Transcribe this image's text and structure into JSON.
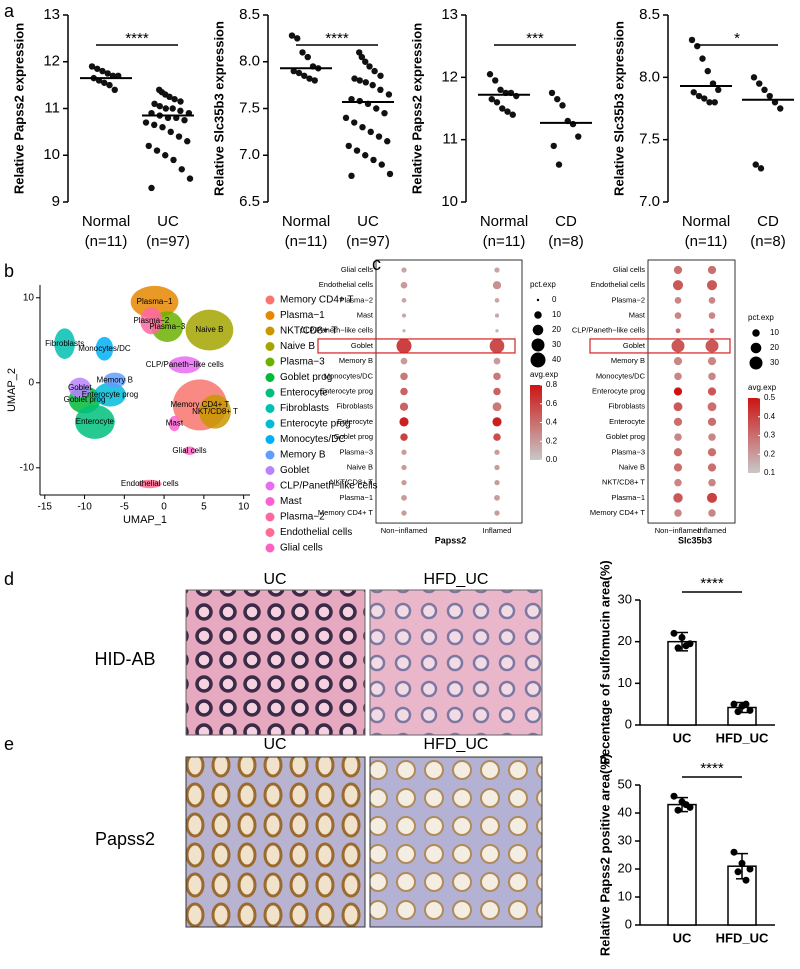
{
  "panels": {
    "a": {
      "letter": "a",
      "plots": [
        {
          "type": "dot_strip",
          "ylabel": "Relative Papss2 expression",
          "ylim": [
            9,
            13
          ],
          "yticks": [
            9,
            10,
            11,
            12,
            13
          ],
          "significance": "****",
          "groups": [
            {
              "name": "Normal",
              "n": "(n=11)",
              "center": 11.65,
              "values": [
                11.9,
                11.85,
                11.8,
                11.75,
                11.7,
                11.7,
                11.65,
                11.6,
                11.55,
                11.5,
                11.4
              ]
            },
            {
              "name": "UC",
              "n": "(n=97)",
              "center": 10.85,
              "values": [
                11.4,
                11.35,
                11.3,
                11.25,
                11.2,
                11.15,
                11.1,
                11.05,
                11.0,
                11.0,
                10.95,
                10.9,
                10.9,
                10.85,
                10.8,
                10.8,
                10.75,
                10.7,
                10.65,
                10.6,
                10.5,
                10.4,
                10.3,
                10.2,
                10.1,
                10.0,
                9.9,
                9.7,
                9.5,
                9.3
              ]
            }
          ]
        },
        {
          "type": "dot_strip",
          "ylabel": "Relative Slc35b3 expression",
          "ylim": [
            6.5,
            8.5
          ],
          "yticks": [
            6.5,
            {
              "value": 7,
              "label": "7.0"
            },
            7.5,
            {
              "value": 8,
              "label": "8.0"
            },
            8.5
          ],
          "significance": "****",
          "groups": [
            {
              "name": "Normal",
              "n": "(n=11)",
              "center": 7.93,
              "values": [
                8.28,
                8.25,
                8.1,
                8.05,
                7.95,
                7.93,
                7.9,
                7.88,
                7.85,
                7.82,
                7.8
              ]
            },
            {
              "name": "UC",
              "n": "(n=97)",
              "center": 7.57,
              "values": [
                8.1,
                8.05,
                8.0,
                7.95,
                7.9,
                7.85,
                7.82,
                7.8,
                7.78,
                7.75,
                7.7,
                7.65,
                7.6,
                7.58,
                7.55,
                7.5,
                7.45,
                7.4,
                7.35,
                7.3,
                7.25,
                7.2,
                7.15,
                7.1,
                7.05,
                7.0,
                6.95,
                6.9,
                6.8,
                6.78
              ]
            }
          ]
        },
        {
          "type": "dot_strip",
          "ylabel": "Relative Papss2 expression",
          "ylim": [
            10,
            13
          ],
          "yticks": [
            10,
            11,
            12,
            13
          ],
          "significance": "***",
          "groups": [
            {
              "name": "Normal",
              "n": "(n=11)",
              "center": 11.72,
              "values": [
                12.05,
                11.95,
                11.8,
                11.75,
                11.75,
                11.7,
                11.65,
                11.6,
                11.5,
                11.45,
                11.4
              ]
            },
            {
              "name": "CD",
              "n": "(n=8)",
              "center": 11.27,
              "values": [
                11.75,
                11.65,
                11.55,
                11.3,
                11.25,
                11.05,
                10.9,
                10.6
              ]
            }
          ]
        },
        {
          "type": "dot_strip",
          "ylabel": "Relative Slc35b3 expression",
          "ylim": [
            7,
            8.5
          ],
          "yticks": [
            {
              "value": 7,
              "label": "7.0"
            },
            7.5,
            {
              "value": 8,
              "label": "8.0"
            },
            8.5
          ],
          "significance": "*",
          "groups": [
            {
              "name": "Normal",
              "n": "(n=11)",
              "center": 7.93,
              "values": [
                8.3,
                8.25,
                8.15,
                8.05,
                7.95,
                7.9,
                7.88,
                7.85,
                7.83,
                7.8,
                7.8
              ]
            },
            {
              "name": "CD",
              "n": "(n=8)",
              "center": 7.82,
              "values": [
                8.0,
                7.95,
                7.9,
                7.85,
                7.8,
                7.75,
                7.3,
                7.27
              ]
            }
          ]
        }
      ]
    },
    "b": {
      "letter": "b",
      "type": "umap",
      "xlabel": "UMAP_1",
      "ylabel": "UMAP_2",
      "xlim": [
        -15.6,
        10.8
      ],
      "ylim": [
        -13.2,
        11.5
      ],
      "xticks": [
        -15,
        -10,
        -5,
        0,
        5,
        10
      ],
      "yticks": [
        -10,
        0,
        10
      ],
      "clusters": [
        {
          "name": "Memory CD4+ T",
          "color": "#f8766d",
          "x": 4.5,
          "y": -2.6,
          "rx": 3.4,
          "ry": 3
        },
        {
          "name": "Plasma−1",
          "color": "#e58700",
          "x": -1.2,
          "y": 9.5,
          "rx": 3,
          "ry": 1.9
        },
        {
          "name": "NKT/CD8+ T",
          "color": "#c99800",
          "x": 6.4,
          "y": -3.4,
          "rx": 2,
          "ry": 2
        },
        {
          "name": "Naive B",
          "color": "#a3a500",
          "x": 5.7,
          "y": 6.2,
          "rx": 3,
          "ry": 2.4
        },
        {
          "name": "Plasma−3",
          "color": "#6bb100",
          "x": 0.4,
          "y": 6.6,
          "rx": 2,
          "ry": 1.8
        },
        {
          "name": "Goblet prog",
          "color": "#00ba38",
          "x": -10,
          "y": -2,
          "rx": 2,
          "ry": 1.6
        },
        {
          "name": "Enterocyte",
          "color": "#00bf7d",
          "x": -8.7,
          "y": -4.6,
          "rx": 2.5,
          "ry": 2
        },
        {
          "name": "Fibroblasts",
          "color": "#00c0af",
          "x": -12.5,
          "y": 4.6,
          "rx": 1.3,
          "ry": 1.8
        },
        {
          "name": "Enterocyte prog",
          "color": "#00bcd8",
          "x": -6.8,
          "y": -1.4,
          "rx": 2,
          "ry": 1.4
        },
        {
          "name": "Monocytes/DC",
          "color": "#00b0f6",
          "x": -7.5,
          "y": 4,
          "rx": 1.1,
          "ry": 1.4
        },
        {
          "name": "Memory B",
          "color": "#619cff",
          "x": -6.2,
          "y": 0.3,
          "rx": 1.4,
          "ry": 0.9
        },
        {
          "name": "Goblet",
          "color": "#b983ff",
          "x": -10.6,
          "y": -0.6,
          "rx": 1.4,
          "ry": 1.2
        },
        {
          "name": "CLP/Paneth−like cells",
          "color": "#e76bf3",
          "x": 2.6,
          "y": 2.1,
          "rx": 2,
          "ry": 1
        },
        {
          "name": "Mast",
          "color": "#fd61d1",
          "x": 1.3,
          "y": -4.8,
          "rx": 0.7,
          "ry": 0.9
        },
        {
          "name": "Plasma−2",
          "color": "#ff67a4",
          "x": -1.6,
          "y": 7.3,
          "rx": 1.4,
          "ry": 1.6
        },
        {
          "name": "Endothelial cells",
          "color": "#ff6c90",
          "x": -1.8,
          "y": -11.9,
          "rx": 1.5,
          "ry": 0.5
        },
        {
          "name": "Glial cells",
          "color": "#ff61c3",
          "x": 3.2,
          "y": -8,
          "rx": 0.8,
          "ry": 0.5
        }
      ]
    },
    "c": {
      "letter": "c",
      "plots": [
        {
          "type": "dot_plot",
          "gene": "Papss2",
          "columns": [
            "Non−inflamed",
            "Inflamed"
          ],
          "highlight_row": 5,
          "rows": [
            "Glial cells",
            "Endothelial cells",
            "Plasma−2",
            "Mast",
            "CLP/Paneth−like cells",
            "Goblet",
            "Memory B",
            "Monocytes/DC",
            "Enterocyte prog",
            "Fibroblasts",
            "Enterocyte",
            "Goblet prog",
            "Plasma−3",
            "Naive B",
            "NKT/CD8+ T",
            "Plasma−1",
            "Memory CD4+ T"
          ],
          "pct": [
            [
              5,
              5
            ],
            [
              8,
              12
            ],
            [
              4,
              4
            ],
            [
              3,
              3
            ],
            [
              2,
              2
            ],
            [
              40,
              38
            ],
            [
              8,
              8
            ],
            [
              10,
              10
            ],
            [
              10,
              10
            ],
            [
              12,
              14
            ],
            [
              15,
              15
            ],
            [
              10,
              10
            ],
            [
              5,
              5
            ],
            [
              5,
              5
            ],
            [
              5,
              5
            ],
            [
              6,
              6
            ],
            [
              5,
              5
            ]
          ],
          "avg": [
            [
              0.15,
              0.15
            ],
            [
              0.2,
              0.25
            ],
            [
              0.15,
              0.15
            ],
            [
              0.15,
              0.15
            ],
            [
              0.1,
              0.1
            ],
            [
              0.6,
              0.55
            ],
            [
              0.2,
              0.2
            ],
            [
              0.35,
              0.35
            ],
            [
              0.45,
              0.45
            ],
            [
              0.45,
              0.35
            ],
            [
              0.75,
              0.75
            ],
            [
              0.6,
              0.55
            ],
            [
              0.2,
              0.2
            ],
            [
              0.2,
              0.2
            ],
            [
              0.2,
              0.2
            ],
            [
              0.2,
              0.2
            ],
            [
              0.2,
              0.2
            ]
          ],
          "size_legend": {
            "title": "pct.exp",
            "values": [
              0,
              10,
              20,
              30,
              40
            ]
          },
          "color_legend": {
            "title": "avg.exp",
            "lim": [
              0,
              0.8
            ],
            "ticks": [
              {
                "value": 0,
                "label": "0.0"
              },
              0.2,
              0.4,
              0.6,
              0.8
            ]
          }
        },
        {
          "type": "dot_plot",
          "gene": "Slc35b3",
          "columns": [
            "Non−inflamed",
            "Inflamed"
          ],
          "highlight_row": 5,
          "rows": [
            "Glial cells",
            "Endothelial cells",
            "Plasma−2",
            "Mast",
            "CLP/Paneth−like cells",
            "Goblet",
            "Memory B",
            "Monocytes/DC",
            "Enterocyte prog",
            "Fibroblasts",
            "Enterocyte",
            "Goblet prog",
            "Plasma−3",
            "Naive B",
            "NKT/CD8+ T",
            "Plasma−1",
            "Memory CD4+ T"
          ],
          "pct": [
            [
              12,
              12
            ],
            [
              18,
              18
            ],
            [
              8,
              8
            ],
            [
              8,
              8
            ],
            [
              4,
              4
            ],
            [
              30,
              30
            ],
            [
              12,
              12
            ],
            [
              10,
              10
            ],
            [
              12,
              12
            ],
            [
              14,
              14
            ],
            [
              12,
              12
            ],
            [
              10,
              10
            ],
            [
              12,
              12
            ],
            [
              12,
              12
            ],
            [
              10,
              10
            ],
            [
              16,
              18
            ],
            [
              10,
              10
            ]
          ],
          "avg": [
            [
              0.3,
              0.3
            ],
            [
              0.35,
              0.35
            ],
            [
              0.25,
              0.25
            ],
            [
              0.25,
              0.25
            ],
            [
              0.3,
              0.3
            ],
            [
              0.35,
              0.35
            ],
            [
              0.25,
              0.25
            ],
            [
              0.25,
              0.25
            ],
            [
              0.5,
              0.35
            ],
            [
              0.35,
              0.3
            ],
            [
              0.3,
              0.3
            ],
            [
              0.25,
              0.25
            ],
            [
              0.3,
              0.3
            ],
            [
              0.3,
              0.3
            ],
            [
              0.25,
              0.25
            ],
            [
              0.35,
              0.4
            ],
            [
              0.25,
              0.25
            ]
          ],
          "size_legend": {
            "title": "pct.exp",
            "values": [
              10,
              20,
              30
            ]
          },
          "color_legend": {
            "title": "avg.exp",
            "lim": [
              0.1,
              0.5
            ],
            "ticks": [
              0.1,
              0.2,
              0.3,
              0.4,
              0.5
            ]
          }
        }
      ]
    },
    "d": {
      "letter": "d",
      "row_label": "HID-AB",
      "image_titles": [
        "UC",
        "HFD_UC"
      ],
      "chart": {
        "type": "bar",
        "ylabel": "Pecentage of sulfomucin area(%)",
        "categories": [
          "UC",
          "HFD_UC"
        ],
        "values": [
          20,
          4.2
        ],
        "errors": [
          2.2,
          1.2
        ],
        "points": [
          [
            22,
            21,
            19.5,
            18.5,
            19
          ],
          [
            5,
            4.5,
            3.5,
            3.2,
            5
          ]
        ],
        "ylim": [
          0,
          30
        ],
        "yticks": [
          0,
          10,
          20,
          30
        ],
        "significance": "****"
      }
    },
    "e": {
      "letter": "e",
      "row_label": "Papss2",
      "image_titles": [
        "UC",
        "HFD_UC"
      ],
      "chart": {
        "type": "bar",
        "ylabel": "Relative Papss2 positive area(%)",
        "categories": [
          "UC",
          "HFD_UC"
        ],
        "values": [
          43,
          21
        ],
        "errors": [
          2.5,
          4.5
        ],
        "points": [
          [
            46,
            44,
            42,
            41,
            43
          ],
          [
            26,
            22,
            20,
            19,
            16
          ]
        ],
        "ylim": [
          0,
          50
        ],
        "yticks": [
          0,
          10,
          20,
          30,
          40,
          50
        ],
        "significance": "****"
      }
    }
  }
}
